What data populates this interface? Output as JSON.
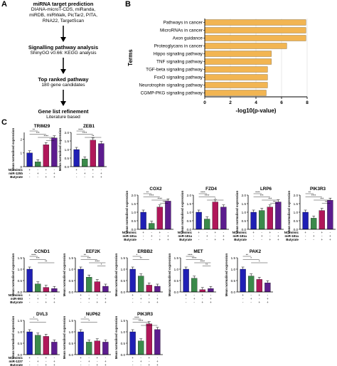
{
  "panels": {
    "a": "A",
    "b": "B",
    "c": "C"
  },
  "flowchart": [
    {
      "title": "miRNA target prediction",
      "lines": [
        "DIANA-microT-CDS, miRanda,",
        "miRDB, miRWalk, PicTar2, PITA,",
        "RNA22, TargetScan"
      ]
    },
    {
      "title": "Signalling pathway analysis",
      "lines": [
        "ShinyGO v0.66: KEGG analysis"
      ]
    },
    {
      "title": "Top ranked pathway",
      "lines": [
        "180 gene candidates"
      ]
    },
    {
      "title": "Gene list refinement",
      "lines": [
        "Literature based"
      ]
    }
  ],
  "chart_data": [
    {
      "type": "bar",
      "orientation": "horizontal",
      "categories": [
        "Pathways in cancer",
        "MicroRNAs in cancer",
        "Axon guidance",
        "Proteoglycans in cancer",
        "Hippo signaling pathway",
        "TNF signaling pathway",
        "TGF-beta signaling pathway",
        "FoxO signaling pathway",
        "Neurotrophin signaling pathway",
        "CGMP-PKG signaling pathway"
      ],
      "values": [
        7.9,
        7.9,
        7.9,
        6.4,
        5.2,
        5.2,
        4.9,
        4.9,
        4.9,
        4.8
      ],
      "xlabel": "-log10(p-value)",
      "ylabel": "Terms",
      "xlim": [
        0,
        8
      ],
      "xticks": [
        "0",
        "2",
        "4",
        "6",
        "8"
      ],
      "bar_color": "#f2b552",
      "grid": true
    }
  ],
  "bar_panels": {
    "ylabel": "Mean normalised expression",
    "rows": [
      {
        "row_labels": [
          "NC mimic",
          "miR-125b",
          "Butyrate"
        ],
        "charts": [
          {
            "gene": "TRIM29",
            "values": [
              1.0,
              0.35,
              1.6,
              2.1
            ],
            "ymax": 2.5,
            "ticks": [
              "0",
              "1",
              "2"
            ],
            "stars": [
              "**",
              "***",
              "****",
              "*"
            ],
            "colors": [
              "#1f1fb4",
              "#3a8a4a",
              "#b0175a",
              "#5c1c8e"
            ],
            "conds": [
              [
                "+",
                "-",
                "+",
                "-"
              ],
              [
                "-",
                "+",
                "-",
                "+"
              ],
              [
                "-",
                "-",
                "+",
                "+"
              ]
            ]
          },
          {
            "gene": "ZEB1",
            "values": [
              1.0,
              0.45,
              1.55,
              1.35
            ],
            "ymax": 2.0,
            "ticks": [
              "0.0",
              "0.5",
              "1.0",
              "1.5",
              "2.0"
            ],
            "stars": [
              "****",
              "****",
              "**"
            ],
            "colors": [
              "#1f1fb4",
              "#3a8a4a",
              "#b0175a",
              "#5c1c8e"
            ],
            "conds": [
              [
                "+",
                "-",
                "+",
                "-"
              ],
              [
                "-",
                "+",
                "-",
                "+"
              ],
              [
                "-",
                "-",
                "+",
                "+"
              ]
            ]
          }
        ]
      },
      {
        "row_labels": [
          "NC mimic",
          "miR-181a",
          "Butyrate"
        ],
        "charts": [
          {
            "gene": "COX2",
            "values": [
              1.0,
              0.35,
              1.3,
              1.65
            ],
            "ymax": 2.0,
            "ticks": [
              "0.0",
              "0.5",
              "1.0",
              "1.5",
              "2.0"
            ],
            "stars": [
              "**",
              "****",
              "****",
              "**"
            ],
            "colors": [
              "#1f1fb4",
              "#3a8a4a",
              "#b0175a",
              "#5c1c8e"
            ],
            "conds": [
              [
                "+",
                "-",
                "+",
                "-"
              ],
              [
                "-",
                "+",
                "-",
                "+"
              ],
              [
                "-",
                "-",
                "+",
                "+"
              ]
            ]
          },
          {
            "gene": "FZD4",
            "values": [
              1.0,
              0.6,
              1.6,
              1.3
            ],
            "ymax": 2.0,
            "ticks": [
              "0.0",
              "0.5",
              "1.0",
              "1.5",
              "2.0"
            ],
            "stars": [
              "****",
              "****",
              "*"
            ],
            "colors": [
              "#1f1fb4",
              "#3a8a4a",
              "#b0175a",
              "#5c1c8e"
            ],
            "conds": [
              [
                "+",
                "-",
                "+",
                "-"
              ],
              [
                "-",
                "+",
                "-",
                "+"
              ],
              [
                "-",
                "-",
                "+",
                "+"
              ]
            ]
          },
          {
            "gene": "LRP6",
            "values": [
              1.0,
              1.1,
              1.3,
              1.6
            ],
            "ymax": 2.0,
            "ticks": [
              "0.0",
              "0.5",
              "1.0",
              "1.5",
              "2.0"
            ],
            "stars": [
              "****",
              "***",
              "***",
              "**"
            ],
            "colors": [
              "#1f1fb4",
              "#3a8a4a",
              "#b0175a",
              "#5c1c8e"
            ],
            "conds": [
              [
                "+",
                "-",
                "+",
                "-"
              ],
              [
                "-",
                "+",
                "-",
                "+"
              ],
              [
                "-",
                "-",
                "+",
                "+"
              ]
            ]
          },
          {
            "gene": "PIK3R3",
            "values": [
              1.0,
              0.65,
              1.1,
              1.7
            ],
            "ymax": 2.0,
            "ticks": [
              "0.0",
              "0.5",
              "1.0",
              "1.5",
              "2.0"
            ],
            "stars": [
              "**",
              "****",
              "***",
              "**"
            ],
            "colors": [
              "#1f1fb4",
              "#3a8a4a",
              "#b0175a",
              "#5c1c8e"
            ],
            "conds": [
              [
                "+",
                "-",
                "+",
                "-"
              ],
              [
                "-",
                "+",
                "-",
                "+"
              ],
              [
                "-",
                "-",
                "+",
                "+"
              ]
            ]
          }
        ]
      },
      {
        "row_labels": [
          "NC mimic",
          "miR-593",
          "Butyrate"
        ],
        "charts": [
          {
            "gene": "CCND1",
            "values": [
              1.0,
              0.35,
              0.2,
              0.15
            ],
            "ymax": 1.5,
            "ticks": [
              "0.0",
              "0.5",
              "1.0",
              "1.5"
            ],
            "stars": [
              "****",
              "***",
              "**"
            ],
            "colors": [
              "#1f1fb4",
              "#3a8a4a",
              "#b0175a",
              "#5c1c8e"
            ],
            "conds": [
              [
                "+",
                "-",
                "+",
                "-"
              ],
              [
                "-",
                "+",
                "-",
                "+"
              ],
              [
                "-",
                "-",
                "+",
                "+"
              ]
            ]
          },
          {
            "gene": "EEF2K",
            "values": [
              1.0,
              0.65,
              0.45,
              0.25
            ],
            "ymax": 1.5,
            "ticks": [
              "0.0",
              "0.5",
              "1.0",
              "1.5"
            ],
            "stars": [
              "**",
              "***",
              "****",
              "*"
            ],
            "colors": [
              "#1f1fb4",
              "#3a8a4a",
              "#b0175a",
              "#5c1c8e"
            ],
            "conds": [
              [
                "+",
                "-",
                "+",
                "-"
              ],
              [
                "-",
                "+",
                "-",
                "+"
              ],
              [
                "-",
                "-",
                "+",
                "+"
              ]
            ]
          },
          {
            "gene": "ERBB2",
            "values": [
              1.0,
              0.7,
              0.3,
              0.25
            ],
            "ymax": 1.5,
            "ticks": [
              "0.0",
              "0.5",
              "1.0",
              "1.5"
            ],
            "stars": [
              "*",
              "**"
            ],
            "colors": [
              "#1f1fb4",
              "#3a8a4a",
              "#b0175a",
              "#5c1c8e"
            ],
            "conds": [
              [
                "+",
                "-",
                "+",
                "-"
              ],
              [
                "-",
                "+",
                "-",
                "+"
              ],
              [
                "-",
                "-",
                "+",
                "+"
              ]
            ]
          },
          {
            "gene": "MET",
            "values": [
              1.0,
              0.6,
              0.1,
              0.15
            ],
            "ymax": 1.5,
            "ticks": [
              "0.0",
              "0.5",
              "1.0",
              "1.5"
            ],
            "stars": [
              "****",
              "****",
              "****",
              "**"
            ],
            "colors": [
              "#1f1fb4",
              "#3a8a4a",
              "#b0175a",
              "#5c1c8e"
            ],
            "conds": [
              [
                "+",
                "-",
                "+",
                "-"
              ],
              [
                "-",
                "+",
                "-",
                "+"
              ],
              [
                "-",
                "-",
                "+",
                "+"
              ]
            ]
          },
          {
            "gene": "PAK2",
            "values": [
              1.0,
              0.7,
              0.55,
              0.4
            ],
            "ymax": 1.5,
            "ticks": [
              "0.0",
              "0.5",
              "1.0",
              "1.5"
            ],
            "stars": [
              "**",
              "*",
              "*"
            ],
            "colors": [
              "#1f1fb4",
              "#3a8a4a",
              "#b0175a",
              "#5c1c8e"
            ],
            "conds": [
              [
                "+",
                "-",
                "+",
                "-"
              ],
              [
                "-",
                "+",
                "-",
                "+"
              ],
              [
                "-",
                "-",
                "+",
                "+"
              ]
            ]
          }
        ]
      },
      {
        "row_labels": [
          "NC mimic",
          "miR-1227",
          "Butyrate"
        ],
        "charts": [
          {
            "gene": "DVL3",
            "values": [
              1.0,
              0.85,
              0.8,
              0.55
            ],
            "ymax": 1.5,
            "ticks": [
              "0.0",
              "0.5",
              "1.0",
              "1.5"
            ],
            "stars": [
              "*",
              "*"
            ],
            "colors": [
              "#1f1fb4",
              "#3a8a4a",
              "#b0175a",
              "#5c1c8e"
            ],
            "conds": [
              [
                "+",
                "-",
                "+",
                "-"
              ],
              [
                "-",
                "+",
                "-",
                "+"
              ],
              [
                "-",
                "-",
                "+",
                "+"
              ]
            ]
          },
          {
            "gene": "NUP62",
            "values": [
              1.0,
              0.55,
              0.6,
              0.55
            ],
            "ymax": 1.5,
            "ticks": [
              "0.0",
              "0.5",
              "1.0",
              "1.5"
            ],
            "stars": [
              "*",
              "*"
            ],
            "colors": [
              "#1f1fb4",
              "#3a8a4a",
              "#b0175a",
              "#5c1c8e"
            ],
            "conds": [
              [
                "+",
                "-",
                "+",
                "-"
              ],
              [
                "-",
                "+",
                "-",
                "+"
              ],
              [
                "-",
                "-",
                "+",
                "+"
              ]
            ]
          },
          {
            "gene": "PIK3R3",
            "values": [
              1.0,
              0.6,
              1.35,
              1.1
            ],
            "ymax": 1.5,
            "ticks": [
              "0.0",
              "0.5",
              "1.0",
              "1.5"
            ],
            "stars": [
              "****",
              "****",
              "*"
            ],
            "colors": [
              "#1f1fb4",
              "#3a8a4a",
              "#b0175a",
              "#5c1c8e"
            ],
            "conds": [
              [
                "+",
                "-",
                "+",
                "-"
              ],
              [
                "-",
                "+",
                "-",
                "+"
              ],
              [
                "-",
                "-",
                "+",
                "+"
              ]
            ]
          }
        ]
      }
    ]
  }
}
